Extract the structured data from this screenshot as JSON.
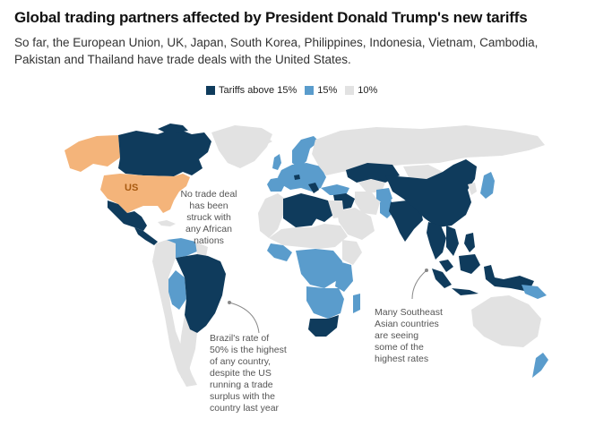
{
  "header": {
    "title": "Global trading partners affected by President Donald Trump's new tariffs",
    "subtitle": "So far, the European Union, UK, Japan, South Korea, Philippines, Indonesia, Vietnam, Cambodia, Pakistan and Thailand have trade deals with the United States."
  },
  "legend": {
    "items": [
      {
        "label": "Tariffs above 15%",
        "color": "#0f3b5c"
      },
      {
        "label": "15%",
        "color": "#5a9ccc"
      },
      {
        "label": "10%",
        "color": "#e2e2e2"
      }
    ]
  },
  "colors": {
    "above15": "#0f3b5c",
    "at15": "#5a9ccc",
    "at10": "#e2e2e2",
    "us": "#f4b47a",
    "ocean": "#ffffff",
    "annotation_line": "#888888"
  },
  "map": {
    "us_label": "US",
    "annotations": {
      "africa": [
        "No trade deal",
        "has been",
        "struck with",
        "any African",
        "nations"
      ],
      "brazil": [
        "Brazil's rate of",
        "50% is the highest",
        "of any country,",
        "despite the US",
        "running a trade",
        "surplus with the",
        "country last year"
      ],
      "asia": [
        "Many Southeast",
        "Asian countries",
        "are seeing",
        "some of the",
        "highest rates"
      ]
    }
  }
}
